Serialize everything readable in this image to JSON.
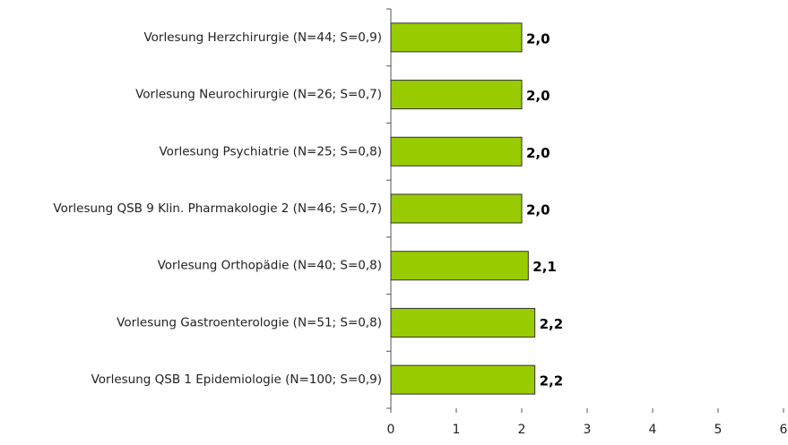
{
  "chart_data": {
    "type": "bar",
    "orientation": "horizontal",
    "categories": [
      "Vorlesung Herzchirurgie (N=44; S=0,9)",
      "Vorlesung Neurochirurgie (N=26; S=0,7)",
      "Vorlesung Psychiatrie (N=25; S=0,8)",
      "Vorlesung QSB 9 Klin. Pharmakologie 2 (N=46; S=0,7)",
      "Vorlesung Orthopädie (N=40; S=0,8)",
      "Vorlesung Gastroenterologie (N=51; S=0,8)",
      "Vorlesung QSB 1 Epidemiologie (N=100; S=0,9)"
    ],
    "values": [
      2.0,
      2.0,
      2.0,
      2.0,
      2.1,
      2.2,
      2.2
    ],
    "value_labels": [
      "2,0",
      "2,0",
      "2,0",
      "2,0",
      "2,1",
      "2,2",
      "2,2"
    ],
    "color": "#99cc00",
    "xlim": [
      0,
      6
    ],
    "xticks": [
      0,
      1,
      2,
      3,
      4,
      5,
      6
    ]
  }
}
